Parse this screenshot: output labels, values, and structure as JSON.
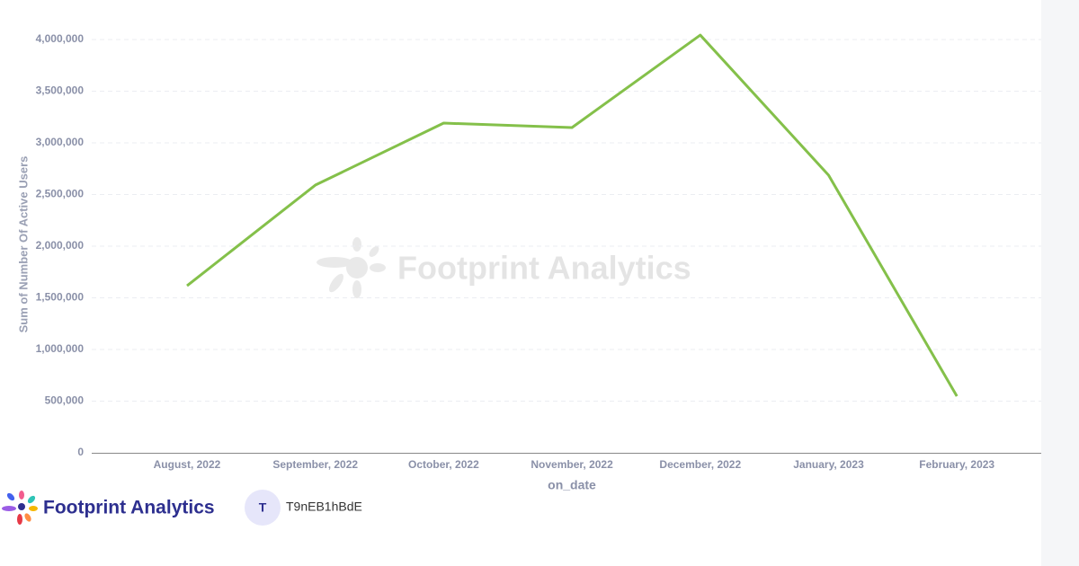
{
  "chart_data": {
    "type": "line",
    "y_label": "Sum of Number Of Active Users",
    "x_label": "on_date",
    "watermark": "Footprint Analytics",
    "categories": [
      "August, 2022",
      "September, 2022",
      "October, 2022",
      "November, 2022",
      "December, 2022",
      "January, 2023",
      "February, 2023"
    ],
    "series": [
      {
        "name": "Sum of Number Of Active Users",
        "color": "#84c04a",
        "values": [
          1617000,
          2591000,
          3191000,
          3148000,
          4043000,
          2687000,
          548000
        ]
      }
    ],
    "ylim": [
      0,
      4000000
    ],
    "yticks": [
      0,
      {
        "value": 500000,
        "label": "500,000"
      },
      {
        "value": 1000000,
        "label": "1,000,000"
      },
      {
        "value": 1500000,
        "label": "1,500,000"
      },
      {
        "value": 2000000,
        "label": "2,000,000"
      },
      {
        "value": 2500000,
        "label": "2,500,000"
      },
      {
        "value": 3000000,
        "label": "3,000,000"
      },
      {
        "value": 3500000,
        "label": "3,500,000"
      },
      {
        "value": 4000000,
        "label": "4,000,000"
      }
    ],
    "grid": true
  },
  "footer": {
    "brand": "Footprint Analytics",
    "user_initial": "T",
    "user_name": "T9nEB1hBdE"
  }
}
